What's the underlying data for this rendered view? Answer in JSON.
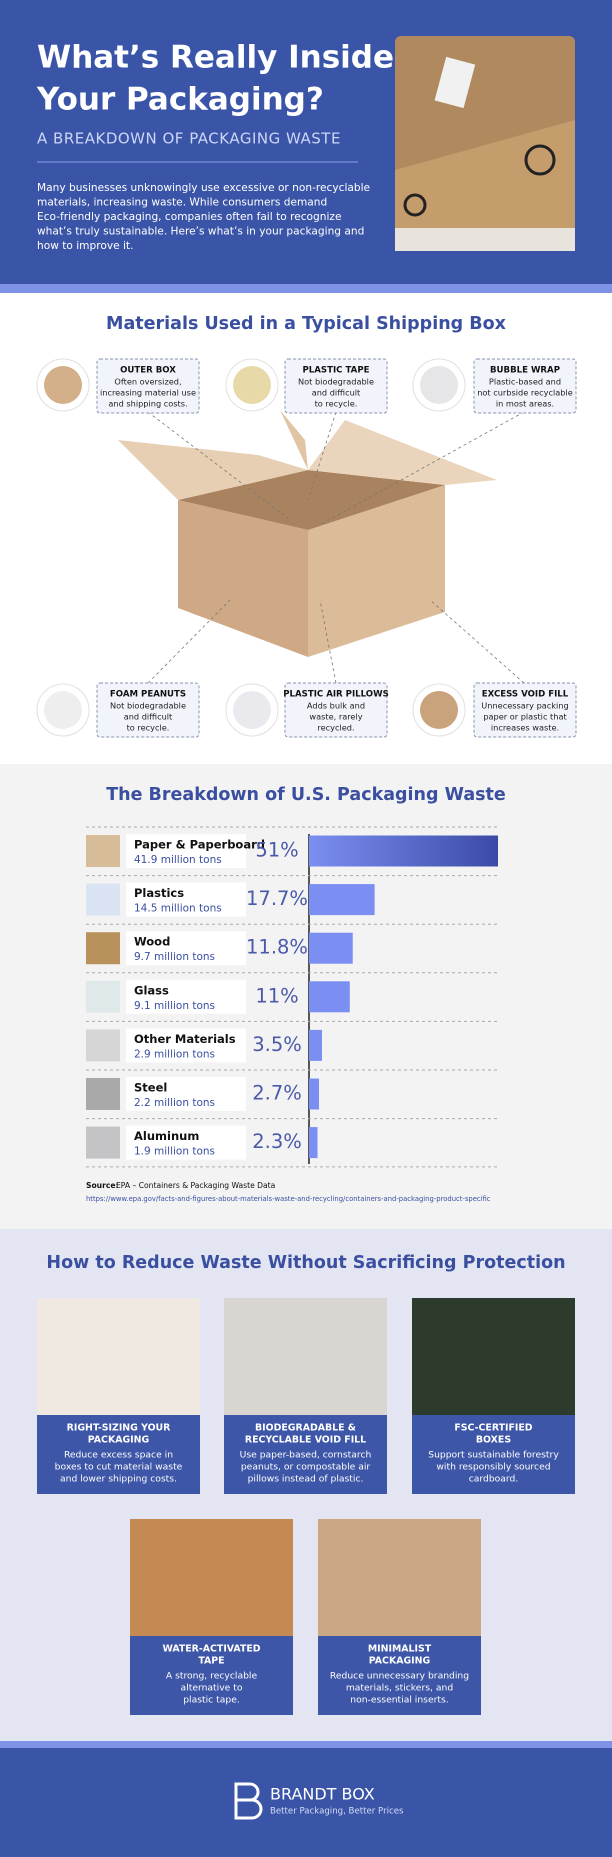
{
  "header": {
    "title": [
      "What’s Really Inside",
      "Your Packaging?"
    ],
    "subtitle": "A BREAKDOWN OF PACKAGING WASTE",
    "intro": [
      "Many businesses unknowingly use excessive or non-recyclable",
      "materials, increasing waste. While consumers demand",
      "Eco-friendly packaging, companies often fail to recognize",
      "what’s truly sustainable. Here’s what’s in your packaging and",
      "how to improve it."
    ]
  },
  "materials": {
    "title": "Materials Used in a Typical Shipping Box",
    "items": [
      {
        "name": "OUTER BOX",
        "description": [
          "Often oversized,",
          "increasing material use",
          "and shipping costs."
        ]
      },
      {
        "name": "PLASTIC TAPE",
        "description": [
          "Not biodegradable",
          "and difficult",
          "to recycle."
        ]
      },
      {
        "name": "BUBBLE WRAP",
        "description": [
          "Plastic-based and",
          "not curbside recyclable",
          "in most areas."
        ]
      },
      {
        "name": "FOAM PEANUTS",
        "description": [
          "Not biodegradable",
          "and difficult",
          "to recycle."
        ]
      },
      {
        "name": "PLASTIC AIR PILLOWS",
        "description": [
          "Adds bulk and",
          "waste, rarely",
          "recycled."
        ]
      },
      {
        "name": "EXCESS VOID FILL",
        "description": [
          "Unnecessary packing",
          "paper or plastic that",
          "increases waste."
        ]
      }
    ]
  },
  "chart_data": {
    "type": "bar",
    "orientation": "horizontal",
    "title": "The Breakdown of U.S. Packaging Waste",
    "categories": [
      "Paper & Paperboard",
      "Plastics",
      "Wood",
      "Glass",
      "Other Materials",
      "Steel",
      "Aluminum"
    ],
    "sublabels": [
      "41.9 million tons",
      "14.5 million tons",
      "9.7 million tons",
      "9.1 million tons",
      "2.9 million tons",
      "2.2 million tons",
      "1.9 million tons"
    ],
    "values": [
      51,
      17.7,
      11.8,
      11,
      3.5,
      2.7,
      2.3
    ],
    "value_labels": [
      "51%",
      "17.7%",
      "11.8%",
      "11%",
      "3.5%",
      "2.7%",
      "2.3%"
    ],
    "color": "#7b8ff2",
    "source_label": "Source:",
    "source": "EPA – Containers & Packaging Waste Data",
    "url": "https://www.epa.gov/facts-and-figures-about-materials-waste-and-recycling/containers-and-packaging-product-specific"
  },
  "reduce": {
    "title": "How to Reduce Waste Without Sacrificing Protection",
    "cards": [
      {
        "title": [
          "RIGHT-SIZING YOUR",
          "PACKAGING"
        ],
        "text": [
          "Reduce excess space in",
          "boxes to cut material waste",
          "and lower shipping costs."
        ]
      },
      {
        "title": [
          "BIODEGRADABLE &",
          "RECYCLABLE VOID FILL"
        ],
        "text": [
          "Use paper-based, cornstarch",
          "peanuts, or compostable air",
          "pillows instead of plastic."
        ]
      },
      {
        "title": [
          "FSC-CERTIFIED",
          "BOXES"
        ],
        "text": [
          "Support sustainable forestry",
          "with responsibly sourced",
          "cardboard."
        ]
      },
      {
        "title": [
          "WATER-ACTIVATED",
          "TAPE"
        ],
        "text": [
          "A strong, recyclable",
          "alternative to",
          "plastic tape."
        ]
      },
      {
        "title": [
          "MINIMALIST",
          "PACKAGING"
        ],
        "text": [
          "Reduce unnecessary branding",
          "materials, stickers, and",
          "non-essential inserts."
        ]
      }
    ]
  },
  "footer": {
    "brand": "BRANDT BOX",
    "tagline": "Better Packaging, Better Prices"
  }
}
